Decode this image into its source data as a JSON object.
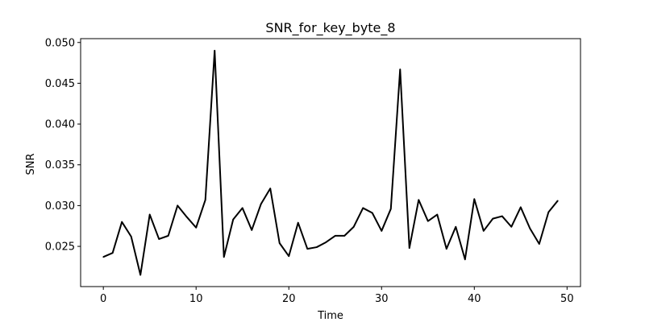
{
  "chart_data": {
    "type": "line",
    "title": "SNR_for_key_byte_8",
    "xlabel": "Time",
    "ylabel": "SNR",
    "xlim": [
      -2.45,
      51.45
    ],
    "ylim": [
      0.02007,
      0.05047
    ],
    "xticks": [
      0,
      10,
      20,
      30,
      40,
      50
    ],
    "xtick_labels": [
      "0",
      "10",
      "20",
      "30",
      "40",
      "50"
    ],
    "yticks": [
      0.025,
      0.03,
      0.035,
      0.04,
      0.045,
      0.05
    ],
    "ytick_labels": [
      "0.025",
      "0.030",
      "0.035",
      "0.040",
      "0.045",
      "0.050"
    ],
    "grid": false,
    "series": [
      {
        "color": "#000000",
        "x": [
          0,
          1,
          2,
          3,
          4,
          5,
          6,
          7,
          8,
          9,
          10,
          11,
          12,
          13,
          14,
          15,
          16,
          17,
          18,
          19,
          20,
          21,
          22,
          23,
          24,
          25,
          26,
          27,
          28,
          29,
          30,
          31,
          32,
          33,
          34,
          35,
          36,
          37,
          38,
          39,
          40,
          41,
          42,
          43,
          44,
          45,
          46,
          47,
          48,
          49
        ],
        "y": [
          0.0237,
          0.0242,
          0.028,
          0.0262,
          0.0215,
          0.0289,
          0.0259,
          0.0263,
          0.03,
          0.0286,
          0.0273,
          0.0307,
          0.049,
          0.0237,
          0.0283,
          0.0297,
          0.027,
          0.0302,
          0.0321,
          0.0254,
          0.0238,
          0.0279,
          0.0247,
          0.0249,
          0.0255,
          0.0263,
          0.0263,
          0.0274,
          0.0297,
          0.0291,
          0.0269,
          0.0296,
          0.0467,
          0.0248,
          0.0307,
          0.0281,
          0.0289,
          0.0247,
          0.0274,
          0.0234,
          0.0308,
          0.0269,
          0.0284,
          0.0287,
          0.0274,
          0.0298,
          0.0272,
          0.0253,
          0.0292,
          0.0306
        ]
      }
    ]
  }
}
